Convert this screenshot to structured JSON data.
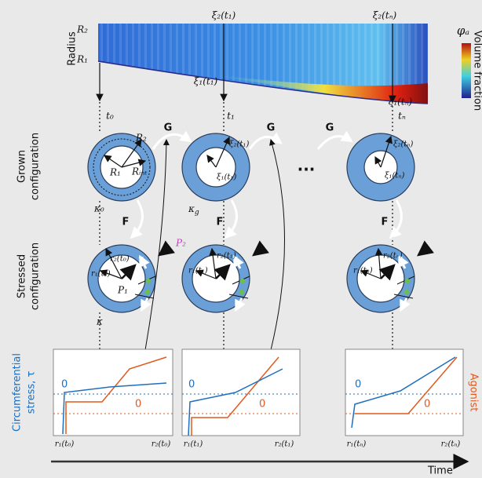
{
  "heatmap": {
    "axis_label": "Radius",
    "r2": "R₂",
    "r1": "R₁",
    "xi2_t1": "ξ₂(t₁)",
    "xi2_tn": "ξ₂(tₙ)",
    "xi1_t1": "ξ₁(t₁)",
    "xi1_tn": "ξ₁(tₙ)",
    "colorbar_symbol": "φₐ",
    "colorbar_label": "Volume fraction"
  },
  "times": [
    "t₀",
    "t₁",
    "tₙ"
  ],
  "row_labels": {
    "grown": [
      "Grown",
      "configuration"
    ],
    "stressed": [
      "Stressed",
      "configuration"
    ]
  },
  "grown": {
    "panels": [
      {
        "outer": "R₂",
        "inner": "R₁",
        "interface": "Rᵢₙₜ",
        "config": "κ₀"
      },
      {
        "outer": "ξ₂(t₁)",
        "inner": "ξ₁(t₁)",
        "config": {
          "base": "κ",
          "sub": "g"
        }
      },
      {
        "outer": "ξ₂(tₙ)",
        "inner": "ξ₁(tₙ)"
      }
    ],
    "growth_map": [
      "G",
      "G",
      "G"
    ],
    "deformation_map": [
      "F",
      "F",
      "F"
    ],
    "ellipsis": "..."
  },
  "stressed": {
    "panels": [
      {
        "outer": "r₂(t₀)",
        "inner": "r₁(t₀)",
        "inner_pressure": "P₁",
        "outer_pressure": "P₂",
        "stress": "τ",
        "config": "κ"
      },
      {
        "outer": "r₂(t₁)",
        "inner": "r₁(t₁)",
        "stress": "τ"
      },
      {
        "outer": "r₂(tₙ)",
        "inner": "r₁(tₙ)",
        "stress": "τ"
      }
    ]
  },
  "plots": {
    "left_axis_label": [
      "Circumferential",
      "stress, τ"
    ],
    "right_axis_label": "Agonist",
    "zero_stress": "0",
    "zero_agonist": "0",
    "x_labels": [
      [
        "r₁(t₀)",
        "r₂(t₀)"
      ],
      [
        "r₁(t₁)",
        "r₂(t₁)"
      ],
      [
        "r₁(tₙ)",
        "r₂(tₙ)"
      ]
    ]
  },
  "time_axis": "Time"
}
